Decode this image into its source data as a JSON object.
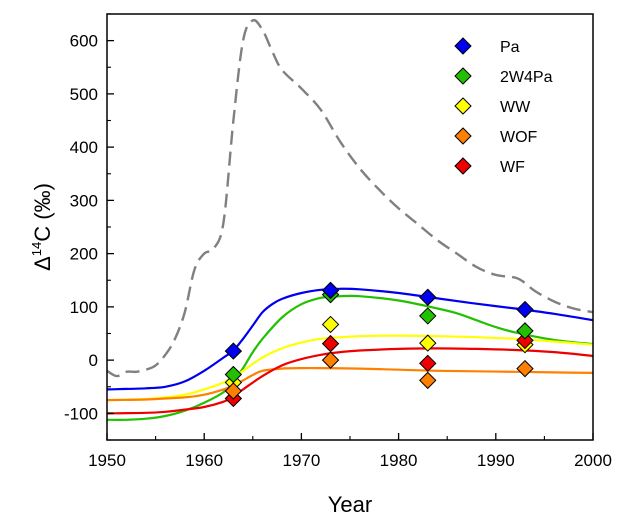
{
  "chart_data": {
    "type": "line",
    "xlabel": "Year",
    "ylabel_main": "Δ",
    "ylabel_sup": "14",
    "ylabel_rest": "C (‰)",
    "xlim": [
      1950,
      2000
    ],
    "ylim": [
      -150,
      650
    ],
    "xticks": [
      "1950",
      "1960",
      "1970",
      "1980",
      "1990",
      "2000"
    ],
    "yticks": [
      "-100",
      "0",
      "100",
      "200",
      "300",
      "400",
      "500",
      "600"
    ],
    "grid": false,
    "legend_position": "top-right",
    "atmosphere": {
      "color": "#808080",
      "style": "dashed",
      "x": [
        1950,
        1951,
        1952,
        1953,
        1954,
        1955,
        1956,
        1957,
        1958,
        1959,
        1960,
        1961,
        1962,
        1963,
        1964,
        1965,
        1966,
        1967,
        1968,
        1970,
        1972,
        1974,
        1976,
        1978,
        1980,
        1982,
        1984,
        1986,
        1988,
        1990,
        1992,
        1993,
        1994,
        1996,
        1998,
        2000
      ],
      "y": [
        -20,
        -30,
        -22,
        -22,
        -18,
        -10,
        10,
        40,
        90,
        170,
        200,
        210,
        260,
        450,
        600,
        638,
        620,
        580,
        545,
        510,
        470,
        410,
        360,
        320,
        285,
        255,
        225,
        200,
        175,
        160,
        155,
        145,
        130,
        110,
        97,
        90
      ]
    },
    "series": [
      {
        "name": "Pa",
        "color": "#0000ee",
        "model_x": [
          1950,
          1954,
          1956,
          1958,
          1960,
          1962,
          1963,
          1964,
          1965,
          1966,
          1967,
          1968,
          1970,
          1972,
          1974,
          1976,
          1980,
          1984,
          1988,
          1992,
          1996,
          2000
        ],
        "model_y": [
          -55,
          -53,
          -50,
          -40,
          -20,
          5,
          18,
          40,
          65,
          90,
          105,
          115,
          126,
          132,
          134,
          133,
          126,
          116,
          106,
          97,
          87,
          75
        ],
        "points_x": [
          1963,
          1973,
          1983,
          1993
        ],
        "points_y": [
          17,
          131,
          118,
          95
        ]
      },
      {
        "name": "2W4Pa",
        "color": "#22c000",
        "model_x": [
          1950,
          1952,
          1954,
          1956,
          1958,
          1960,
          1962,
          1963,
          1964,
          1965,
          1966,
          1968,
          1970,
          1972,
          1974,
          1976,
          1980,
          1984,
          1986,
          1988,
          1990,
          1992,
          1996,
          2000
        ],
        "model_y": [
          -112,
          -112,
          -110,
          -105,
          -95,
          -80,
          -60,
          -40,
          -15,
          15,
          40,
          80,
          105,
          117,
          120,
          120,
          112,
          97,
          88,
          75,
          62,
          52,
          38,
          30
        ],
        "points_x": [
          1963,
          1973,
          1983,
          1993
        ],
        "points_y": [
          -27,
          123,
          83,
          55
        ]
      },
      {
        "name": "WW",
        "color": "#ffff00",
        "model_x": [
          1950,
          1954,
          1956,
          1958,
          1960,
          1962,
          1963,
          1964,
          1966,
          1968,
          1970,
          1972,
          1976,
          1980,
          1984,
          1988,
          1992,
          1996,
          2000
        ],
        "model_y": [
          -75,
          -73,
          -70,
          -65,
          -55,
          -42,
          -32,
          -20,
          5,
          22,
          33,
          40,
          45,
          46,
          45,
          43,
          40,
          35,
          29
        ],
        "points_x": [
          1963,
          1973,
          1983,
          1993
        ],
        "points_y": [
          -42,
          67,
          32,
          29
        ]
      },
      {
        "name": "WOF",
        "color": "#ff8000",
        "model_x": [
          1950,
          1954,
          1956,
          1958,
          1960,
          1962,
          1963,
          1964,
          1965,
          1966,
          1968,
          1970,
          1972,
          1976,
          1980,
          1984,
          1988,
          1992,
          1996,
          2000
        ],
        "model_y": [
          -75,
          -74,
          -72,
          -70,
          -65,
          -55,
          -48,
          -38,
          -28,
          -20,
          -16,
          -15,
          -15,
          -16,
          -18,
          -20,
          -21,
          -22,
          -23,
          -24
        ],
        "points_x": [
          1963,
          1973,
          1983,
          1993
        ],
        "points_y": [
          -58,
          0,
          -38,
          -16
        ]
      },
      {
        "name": "WF",
        "color": "#ee0000",
        "model_x": [
          1950,
          1954,
          1956,
          1958,
          1960,
          1962,
          1963,
          1964,
          1966,
          1968,
          1970,
          1972,
          1974,
          1976,
          1980,
          1984,
          1988,
          1992,
          1996,
          2000
        ],
        "model_y": [
          -100,
          -99,
          -97,
          -93,
          -88,
          -78,
          -68,
          -55,
          -30,
          -10,
          2,
          10,
          15,
          18,
          21,
          22,
          21,
          19,
          15,
          8
        ],
        "points_x": [
          1963,
          1973,
          1983,
          1993
        ],
        "points_y": [
          -72,
          31,
          -6,
          37
        ]
      }
    ]
  }
}
